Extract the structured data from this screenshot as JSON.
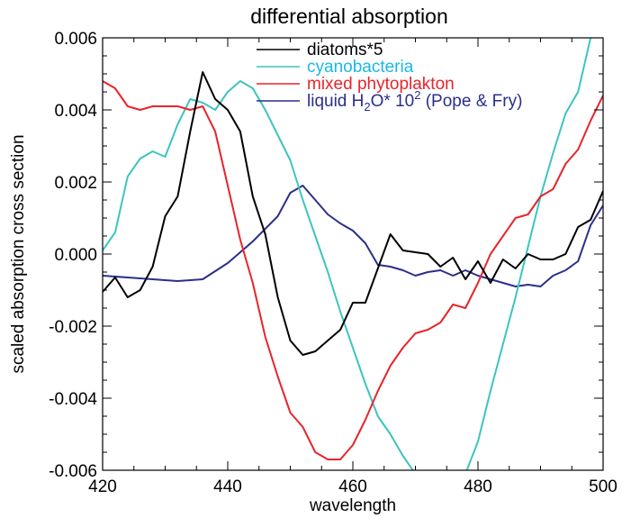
{
  "chart_data": {
    "type": "line",
    "title": "differential absorption",
    "xlabel": "wavelength",
    "ylabel": "scaled absorption cross section",
    "xlim": [
      420,
      500
    ],
    "ylim": [
      -0.006,
      0.006
    ],
    "xticks": [
      "420",
      "440",
      "460",
      "480",
      "500"
    ],
    "yticks": [
      "-0.006",
      "-0.004",
      "-0.002",
      "0.000",
      "0.002",
      "0.004",
      "0.006"
    ],
    "grid": false,
    "legend_position": "top-center",
    "series": [
      {
        "name": "diatoms*5",
        "color": "#000000",
        "x": [
          420,
          422,
          424,
          426,
          428,
          430,
          432,
          434,
          436,
          438,
          440,
          442,
          444,
          446,
          448,
          450,
          452,
          454,
          456,
          458,
          460,
          462,
          464,
          466,
          468,
          470,
          472,
          474,
          476,
          478,
          480,
          482,
          484,
          486,
          488,
          490,
          492,
          494,
          496,
          498,
          500
        ],
        "y": [
          -0.00105,
          -0.00065,
          -0.0012,
          -0.001,
          -0.00035,
          0.00105,
          0.0016,
          0.0034,
          0.00505,
          0.0043,
          0.004,
          0.0034,
          0.0016,
          0.00055,
          -0.0012,
          -0.0024,
          -0.0028,
          -0.0027,
          -0.0024,
          -0.0021,
          -0.00135,
          -0.00135,
          -0.0004,
          0.00055,
          0.0001,
          5e-05,
          0.0,
          -0.00035,
          -0.0001,
          -0.0007,
          -0.0002,
          -0.0008,
          -0.00015,
          -0.0004,
          0.0,
          -0.00015,
          -0.00015,
          0.0,
          0.00075,
          0.00095,
          0.00175
        ]
      },
      {
        "name": "cyanobacteria",
        "color": "#3cc4c0",
        "x": [
          420,
          422,
          424,
          426,
          428,
          430,
          432,
          434,
          436,
          438,
          440,
          442,
          444,
          446,
          448,
          450,
          452,
          454,
          456,
          458,
          460,
          462,
          464,
          466,
          468,
          470,
          478,
          480,
          482,
          484,
          486,
          488,
          490,
          492,
          494,
          496,
          498,
          500
        ],
        "y": [
          0.0001,
          0.0006,
          0.00215,
          0.00265,
          0.00285,
          0.0027,
          0.0036,
          0.0043,
          0.0042,
          0.004,
          0.0045,
          0.0048,
          0.0046,
          0.004,
          0.0033,
          0.0026,
          0.0015,
          0.0005,
          -0.0005,
          -0.0016,
          -0.0026,
          -0.0036,
          -0.0045,
          -0.005,
          -0.0056,
          -0.0061,
          -0.0061,
          -0.0052,
          -0.0038,
          -0.0025,
          -0.0012,
          0.0002,
          0.0016,
          0.0028,
          0.0039,
          0.0045,
          0.006,
          0.0066
        ]
      },
      {
        "name": "mixed phytoplakton",
        "color": "#e8242b",
        "x": [
          420,
          422,
          424,
          426,
          428,
          430,
          432,
          434,
          436,
          438,
          440,
          442,
          444,
          446,
          448,
          450,
          452,
          454,
          456,
          458,
          460,
          462,
          464,
          466,
          468,
          470,
          472,
          474,
          476,
          478,
          480,
          482,
          484,
          486,
          488,
          490,
          492,
          494,
          496,
          498,
          500
        ],
        "y": [
          0.0048,
          0.0046,
          0.0041,
          0.004,
          0.0041,
          0.0041,
          0.0041,
          0.004,
          0.0041,
          0.0034,
          0.0019,
          0.0004,
          -0.0008,
          -0.0023,
          -0.0034,
          -0.0044,
          -0.0048,
          -0.0055,
          -0.0057,
          -0.0057,
          -0.0053,
          -0.0046,
          -0.0038,
          -0.0031,
          -0.0026,
          -0.0022,
          -0.0021,
          -0.0019,
          -0.0014,
          -0.0015,
          -0.0008,
          0.0,
          0.0005,
          0.001,
          0.0011,
          0.0016,
          0.0018,
          0.0025,
          0.0029,
          0.0037,
          0.0044
        ]
      },
      {
        "name": "liquid H2O* 10^2 (Pope & Fry)",
        "color": "#2a2f8a",
        "x": [
          420,
          424,
          428,
          432,
          436,
          440,
          444,
          448,
          450,
          452,
          454,
          456,
          458,
          460,
          462,
          464,
          466,
          468,
          470,
          472,
          474,
          476,
          478,
          480,
          482,
          484,
          486,
          488,
          490,
          492,
          494,
          496,
          498,
          500
        ],
        "y": [
          -0.0006,
          -0.00065,
          -0.0007,
          -0.00075,
          -0.0007,
          -0.00025,
          0.00035,
          0.00105,
          0.0017,
          0.0019,
          0.0015,
          0.0011,
          0.00085,
          0.00065,
          0.0003,
          -0.0003,
          -0.00035,
          -0.00045,
          -0.0006,
          -0.0005,
          -0.00045,
          -0.0006,
          -0.00045,
          -0.0006,
          -0.0007,
          -0.0008,
          -0.0009,
          -0.00085,
          -0.0009,
          -0.0006,
          -0.00045,
          -0.0002,
          0.0008,
          0.00135
        ]
      }
    ],
    "legend": {
      "entries": [
        {
          "text": "diatoms*5",
          "color": "#000000"
        },
        {
          "text": "cyanobacteria",
          "color": "#1ab8e6"
        },
        {
          "text": "mixed phytoplakton",
          "color": "#e8242b"
        },
        {
          "text_pre": "liquid H",
          "sub": "2",
          "text_mid": "O* 10",
          "sup": "2",
          "text_post": " (Pope & Fry)",
          "color": "#2a2f8a"
        }
      ]
    }
  }
}
